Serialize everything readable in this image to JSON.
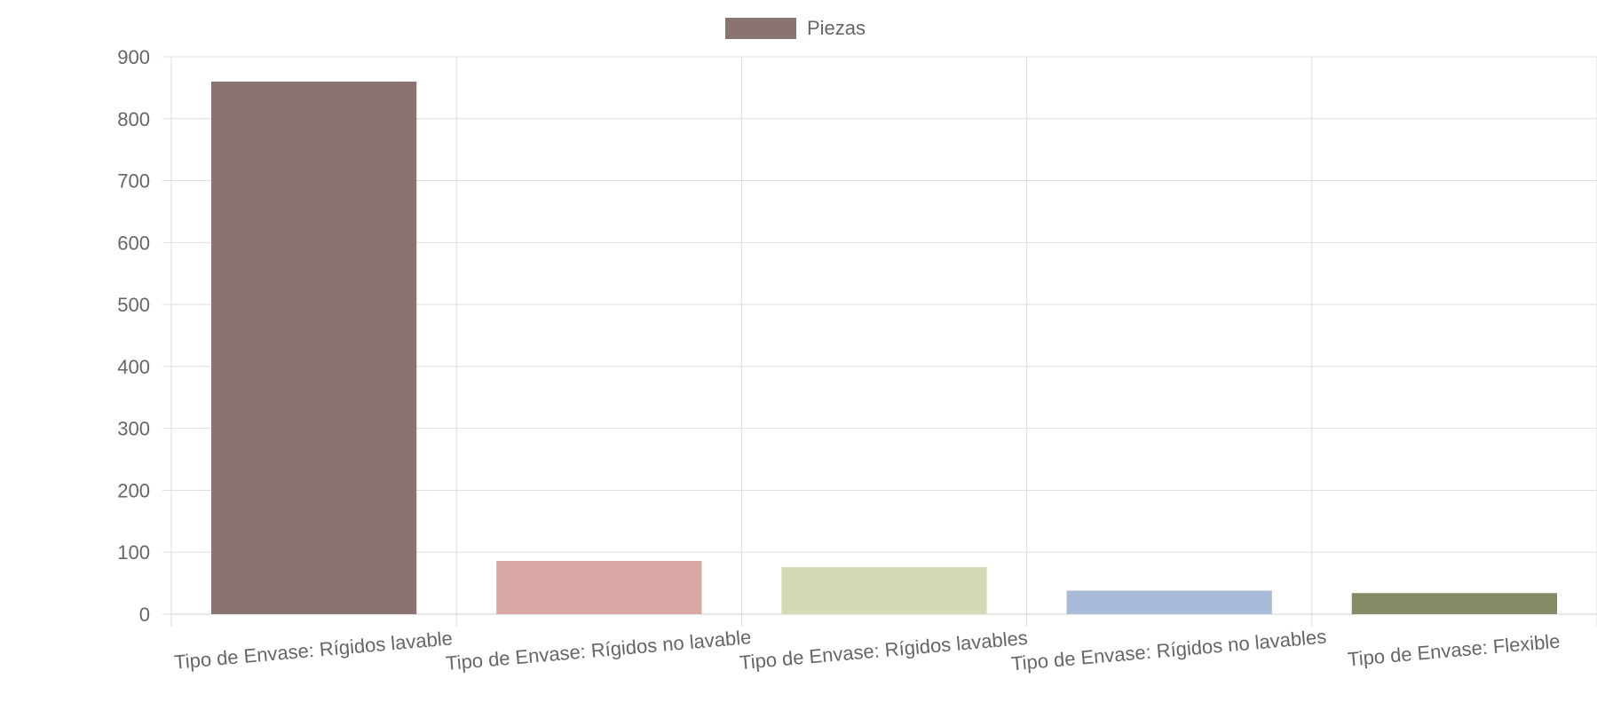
{
  "chart_data": {
    "type": "bar",
    "title": "",
    "xlabel": "",
    "ylabel": "",
    "ylim": [
      0,
      900
    ],
    "yticks": [
      0,
      100,
      200,
      300,
      400,
      500,
      600,
      700,
      800,
      900
    ],
    "grid": true,
    "legend_position": "top-center",
    "categories": [
      "Tipo de Envase: Rígidos lavable",
      "Tipo de Envase: Rígidos no lavable",
      "Tipo de Envase: Rígidos lavables",
      "Tipo de Envase: Rígidos no lavables",
      "Tipo de Envase: Flexible"
    ],
    "series": [
      {
        "name": "Piezas",
        "values": [
          860,
          86,
          76,
          38,
          34
        ],
        "colors": [
          "#8b7372",
          "#d9a8a5",
          "#d5d9b6",
          "#a8bcd9",
          "#848a65"
        ]
      }
    ]
  }
}
